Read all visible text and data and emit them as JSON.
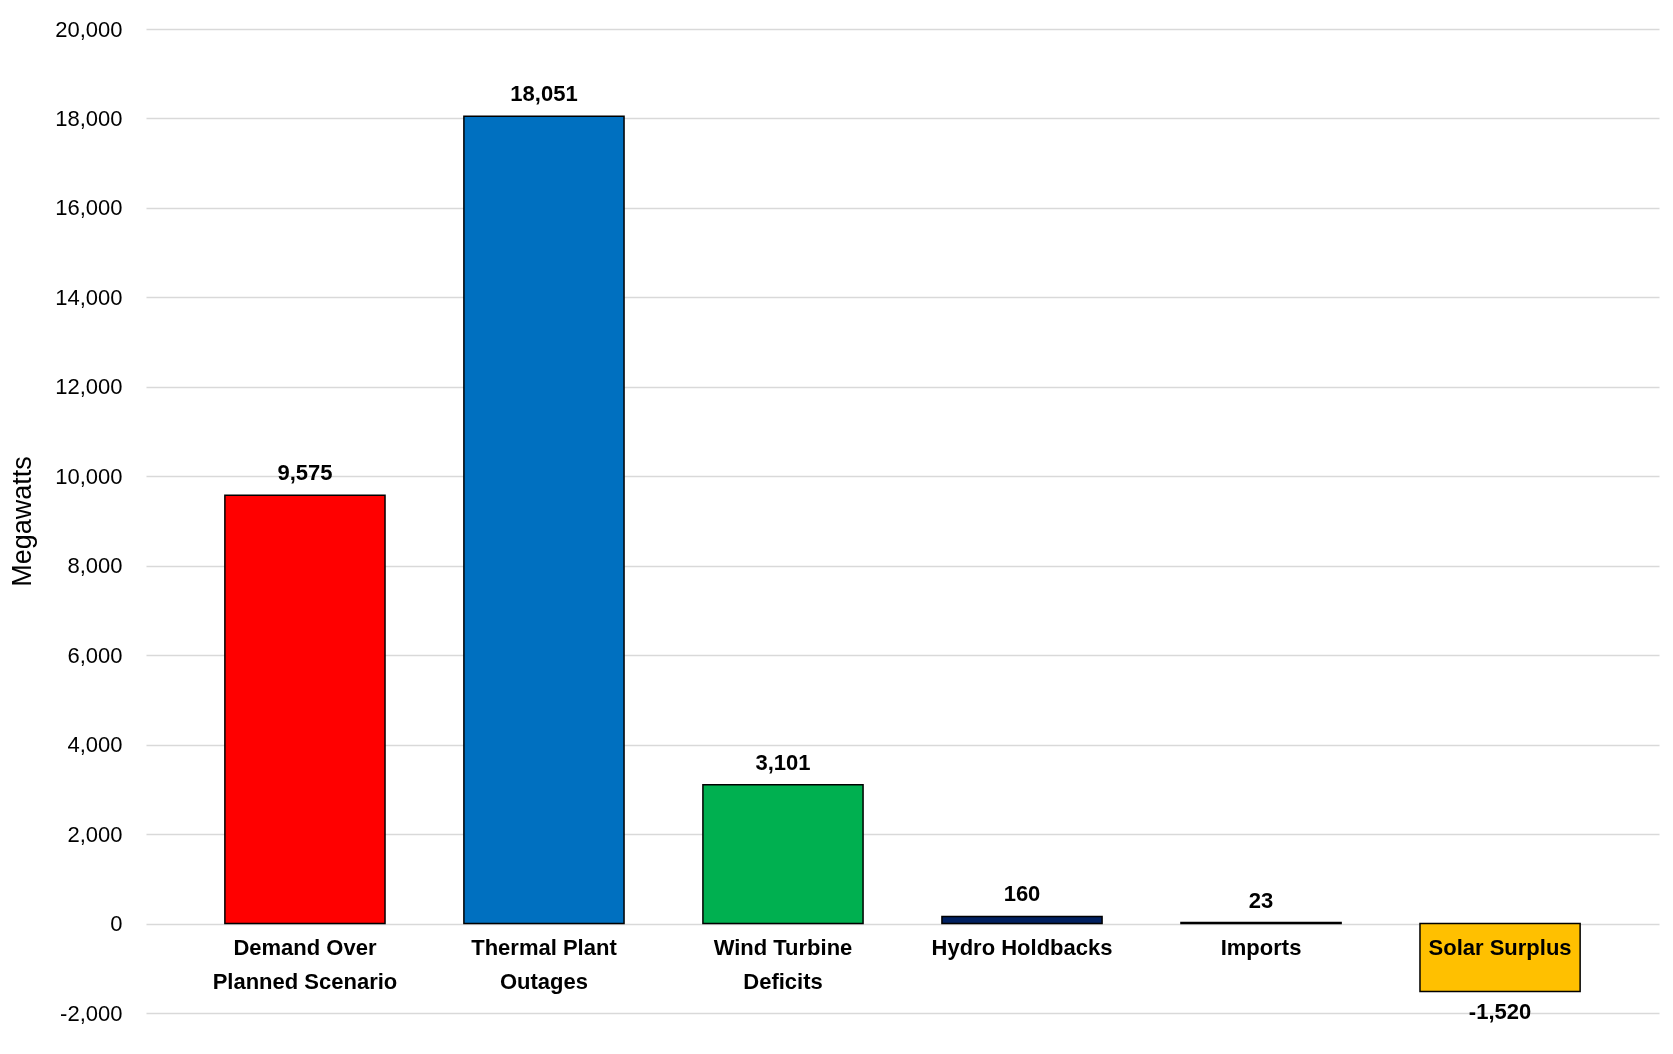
{
  "chart_data": {
    "type": "bar",
    "ylabel": "Megawatts",
    "categories": [
      "Demand Over Planned Scenario",
      "Thermal Plant Outages",
      "Wind Turbine Deficits",
      "Hydro Holdbacks",
      "Imports",
      "Solar Surplus"
    ],
    "values": [
      9575,
      18051,
      3101,
      160,
      23,
      -1520
    ],
    "colors": [
      "#ff0000",
      "#0070c0",
      "#00b050",
      "#002060",
      "#a6a6a6",
      "#ffc000"
    ],
    "ylim": [
      -2000,
      20000
    ],
    "yticks": [
      {
        "value": -2000,
        "label": "-2,000"
      },
      0,
      {
        "value": 2000,
        "label": "2,000"
      },
      {
        "value": 4000,
        "label": "4,000"
      },
      {
        "value": 6000,
        "label": "6,000"
      },
      {
        "value": 8000,
        "label": "8,000"
      },
      {
        "value": 10000,
        "label": "10,000"
      },
      {
        "value": 12000,
        "label": "12,000"
      },
      {
        "value": 14000,
        "label": "14,000"
      },
      {
        "value": 16000,
        "label": "16,000"
      },
      {
        "value": 18000,
        "label": "18,000"
      },
      {
        "value": 20000,
        "label": "20,000"
      }
    ],
    "grid": "y",
    "value_labels": [
      "9,575",
      "18,051",
      "3,101",
      "160",
      "23",
      "-1,520"
    ]
  }
}
